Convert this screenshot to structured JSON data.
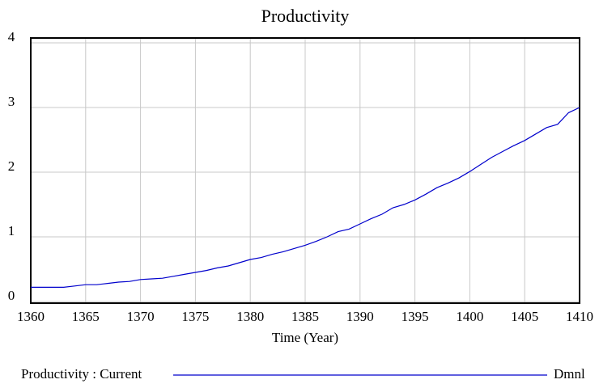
{
  "chart_data": {
    "type": "line",
    "title": "Productivity",
    "xlabel": "Time (Year)",
    "x": [
      1360,
      1361,
      1362,
      1363,
      1364,
      1365,
      1366,
      1367,
      1368,
      1369,
      1370,
      1371,
      1372,
      1373,
      1374,
      1375,
      1376,
      1377,
      1378,
      1379,
      1380,
      1381,
      1382,
      1383,
      1384,
      1385,
      1386,
      1387,
      1388,
      1389,
      1390,
      1391,
      1392,
      1393,
      1394,
      1395,
      1396,
      1397,
      1398,
      1399,
      1400,
      1401,
      1402,
      1403,
      1404,
      1405,
      1406,
      1407,
      1408,
      1409,
      1410
    ],
    "series": [
      {
        "name": "Productivity : Current",
        "unit": "Dmnl",
        "color": "#0000cc",
        "values": [
          0.22,
          0.22,
          0.22,
          0.22,
          0.24,
          0.26,
          0.26,
          0.28,
          0.3,
          0.31,
          0.34,
          0.35,
          0.36,
          0.39,
          0.42,
          0.45,
          0.48,
          0.52,
          0.55,
          0.6,
          0.65,
          0.68,
          0.73,
          0.77,
          0.82,
          0.87,
          0.93,
          1.0,
          1.08,
          1.12,
          1.2,
          1.28,
          1.35,
          1.45,
          1.5,
          1.57,
          1.66,
          1.76,
          1.83,
          1.91,
          2.01,
          2.12,
          2.23,
          2.32,
          2.41,
          2.49,
          2.59,
          2.69,
          2.74,
          2.92,
          3.0
        ]
      }
    ],
    "xlim": [
      1360,
      1410
    ],
    "xticks": [
      1360,
      1365,
      1370,
      1375,
      1380,
      1385,
      1390,
      1395,
      1400,
      1405,
      1410
    ],
    "ylim": [
      0,
      4
    ],
    "yticks": [
      0,
      1,
      2,
      3,
      4
    ],
    "grid": true
  }
}
